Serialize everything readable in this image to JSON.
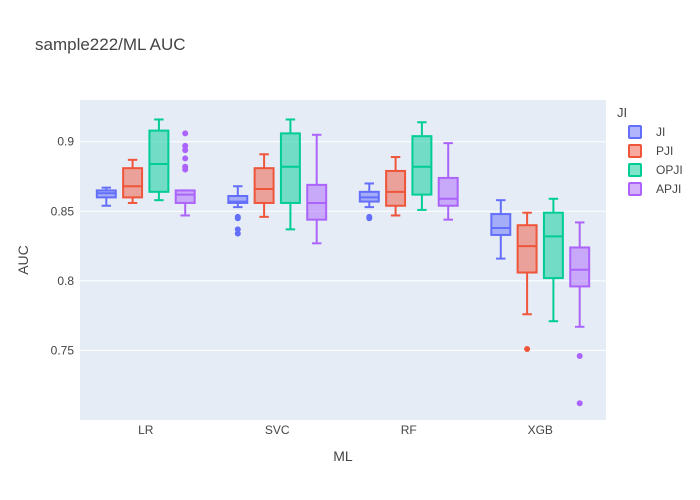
{
  "chart_data": {
    "type": "box",
    "title": "sample222/ML AUC",
    "xlabel": "ML",
    "ylabel": "AUC",
    "ylim": [
      0.7,
      0.93
    ],
    "yticks": [
      0.75,
      0.8,
      0.85,
      0.9
    ],
    "ytick_labels": [
      "0.75",
      "0.8",
      "0.85",
      "0.9"
    ],
    "categories": [
      "LR",
      "SVC",
      "RF",
      "XGB"
    ],
    "legend_title": "JI",
    "legend_position": "top-right",
    "grid": true,
    "colors": {
      "plot_bg": "#e5ecf6",
      "grid": "#ffffff",
      "JI": "#636efa",
      "PJI": "#ef553b",
      "OPJI": "#00cc96",
      "APJI": "#ab63fa"
    },
    "series": [
      {
        "name": "JI",
        "boxes": [
          {
            "min": 0.854,
            "q1": 0.86,
            "median": 0.863,
            "q3": 0.865,
            "max": 0.867,
            "outliers": []
          },
          {
            "min": 0.853,
            "q1": 0.856,
            "median": 0.857,
            "q3": 0.861,
            "max": 0.868,
            "outliers": [
              0.845,
              0.846,
              0.834,
              0.837
            ]
          },
          {
            "min": 0.853,
            "q1": 0.857,
            "median": 0.86,
            "q3": 0.864,
            "max": 0.87,
            "outliers": [
              0.845,
              0.846
            ]
          },
          {
            "min": 0.816,
            "q1": 0.833,
            "median": 0.838,
            "q3": 0.848,
            "max": 0.858,
            "outliers": []
          }
        ]
      },
      {
        "name": "PJI",
        "boxes": [
          {
            "min": 0.856,
            "q1": 0.86,
            "median": 0.868,
            "q3": 0.881,
            "max": 0.887,
            "outliers": []
          },
          {
            "min": 0.846,
            "q1": 0.856,
            "median": 0.866,
            "q3": 0.881,
            "max": 0.891,
            "outliers": []
          },
          {
            "min": 0.847,
            "q1": 0.854,
            "median": 0.864,
            "q3": 0.879,
            "max": 0.889,
            "outliers": []
          },
          {
            "min": 0.776,
            "q1": 0.806,
            "median": 0.825,
            "q3": 0.84,
            "max": 0.849,
            "outliers": [
              0.751
            ]
          }
        ]
      },
      {
        "name": "OPJI",
        "boxes": [
          {
            "min": 0.858,
            "q1": 0.864,
            "median": 0.884,
            "q3": 0.908,
            "max": 0.916,
            "outliers": []
          },
          {
            "min": 0.837,
            "q1": 0.856,
            "median": 0.882,
            "q3": 0.906,
            "max": 0.916,
            "outliers": []
          },
          {
            "min": 0.851,
            "q1": 0.862,
            "median": 0.882,
            "q3": 0.904,
            "max": 0.914,
            "outliers": []
          },
          {
            "min": 0.771,
            "q1": 0.802,
            "median": 0.832,
            "q3": 0.849,
            "max": 0.859,
            "outliers": []
          }
        ]
      },
      {
        "name": "APJI",
        "boxes": [
          {
            "min": 0.847,
            "q1": 0.856,
            "median": 0.862,
            "q3": 0.865,
            "max": 0.865,
            "outliers": [
              0.88,
              0.882,
              0.888,
              0.894,
              0.897,
              0.906
            ]
          },
          {
            "min": 0.827,
            "q1": 0.844,
            "median": 0.856,
            "q3": 0.869,
            "max": 0.905,
            "outliers": []
          },
          {
            "min": 0.844,
            "q1": 0.854,
            "median": 0.859,
            "q3": 0.874,
            "max": 0.899,
            "outliers": []
          },
          {
            "min": 0.767,
            "q1": 0.796,
            "median": 0.808,
            "q3": 0.824,
            "max": 0.842,
            "outliers": [
              0.746,
              0.712
            ]
          }
        ]
      }
    ]
  }
}
